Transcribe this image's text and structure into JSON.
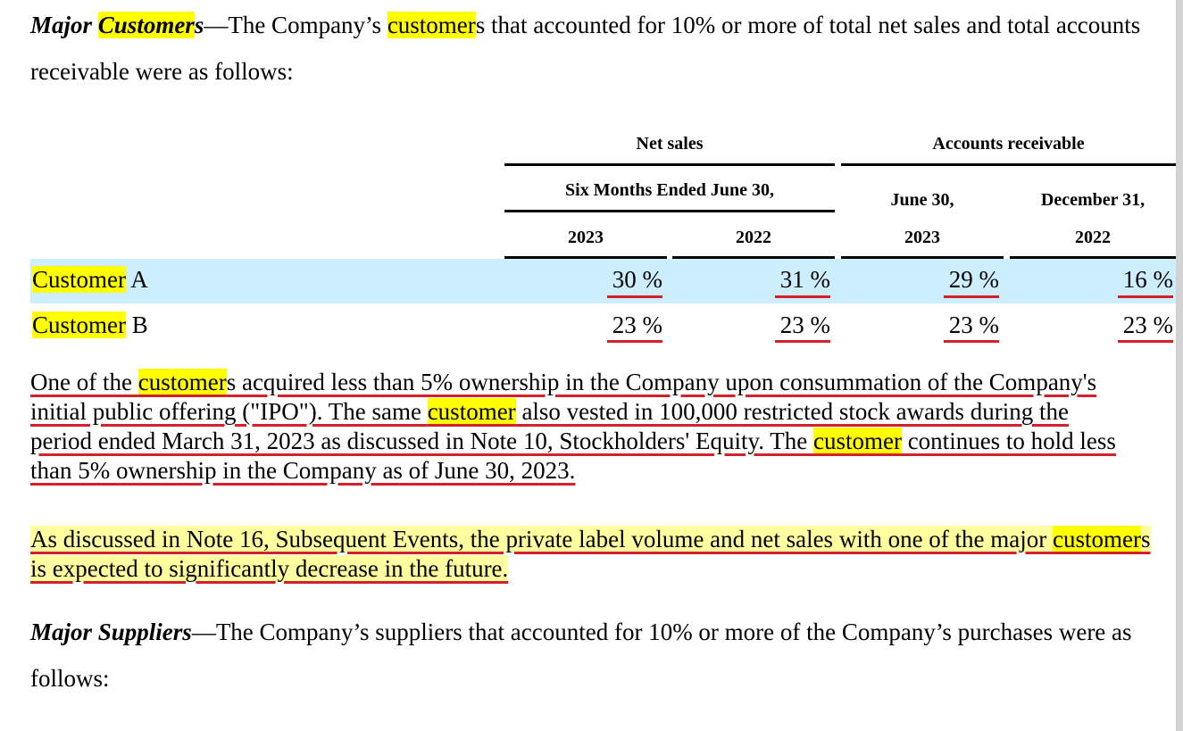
{
  "major_customers": {
    "title_hl": "Customer",
    "title_rest": "s",
    "text_1": "—The Company’s ",
    "hl_word": "customer",
    "text_2": "s that accounted for 10% or more of total net sales and total accounts receivable were as follows:"
  },
  "table": {
    "group_net_sales": "Net sales",
    "group_accounts_receivable": "Accounts receivable",
    "subheader_six_months": "Six Months Ended June 30,",
    "subheader_june30": "June 30,",
    "subheader_dec31": "December 31,",
    "col_2023_a": "2023",
    "col_2022_a": "2022",
    "col_2023_b": "2023",
    "col_2022_b": "2022",
    "rows": [
      {
        "label_hl": "Customer",
        "label_rest": " A",
        "values": [
          "30 %",
          "31 %",
          "29 %",
          "16 %"
        ]
      },
      {
        "label_hl": "Customer",
        "label_rest": " B",
        "values": [
          "23 %",
          "23 %",
          "23 %",
          "23 %"
        ]
      }
    ]
  },
  "ipo_paragraph": {
    "t1": "One of the ",
    "hl1": "customer",
    "t2": "s acquired less than 5% ownership in the Company upon consummation of the Company's initial public offering (\"IPO\"). The same ",
    "hl2": "customer",
    "t3": " also vested in 100,000 restricted stock awards during the period ended March 31, 2023 as discussed in Note 10, Stockholders' Equity. The ",
    "hl3": "customer",
    "t4": " continues to hold less than 5% ownership in the Company as of June 30, 2023."
  },
  "note16_paragraph": {
    "t1": "As discussed in Note 16, Subsequent Events, the private label volume and net sales with one of the major ",
    "hl1": "customer",
    "t2": "s is expected to significantly decrease in the future."
  },
  "major_suppliers": {
    "title": "Major Suppliers",
    "text": "—The Company’s suppliers that accounted for 10% or more of the Company’s purchases were as follows:"
  }
}
